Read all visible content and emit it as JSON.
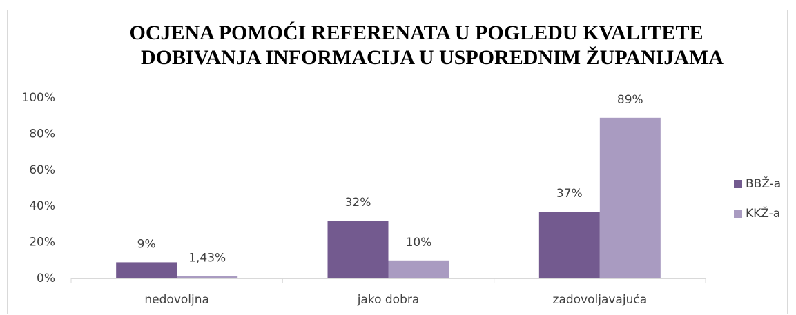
{
  "chart_data": {
    "type": "bar",
    "title": [
      "OCJENA POMOĆI REFERENATA U POGLEDU KVALITETE",
      "DOBIVANJA INFORMACIJA U USPOREDNIM ŽUPANIJAMA"
    ],
    "categories": [
      "nedovoljna",
      "jako dobra",
      "zadovoljavajuća"
    ],
    "series": [
      {
        "name": "BBŽ-a",
        "color": "#735a8f",
        "values": [
          9,
          32,
          37
        ],
        "value_labels": [
          "9%",
          "32%",
          "37%"
        ]
      },
      {
        "name": "KKŽ-a",
        "color": "#a99bc1",
        "values": [
          1.43,
          10,
          89
        ],
        "value_labels": [
          "1,43%",
          "10%",
          "89%"
        ]
      }
    ],
    "ylim": [
      0,
      100
    ],
    "yticks": [
      {
        "value": 0,
        "label": "0%"
      },
      {
        "value": 20,
        "label": "20%"
      },
      {
        "value": 40,
        "label": "40%"
      },
      {
        "value": 60,
        "label": "60%"
      },
      {
        "value": 80,
        "label": "80%"
      },
      {
        "value": 100,
        "label": "100%"
      }
    ],
    "grid": false,
    "legend": "right"
  }
}
